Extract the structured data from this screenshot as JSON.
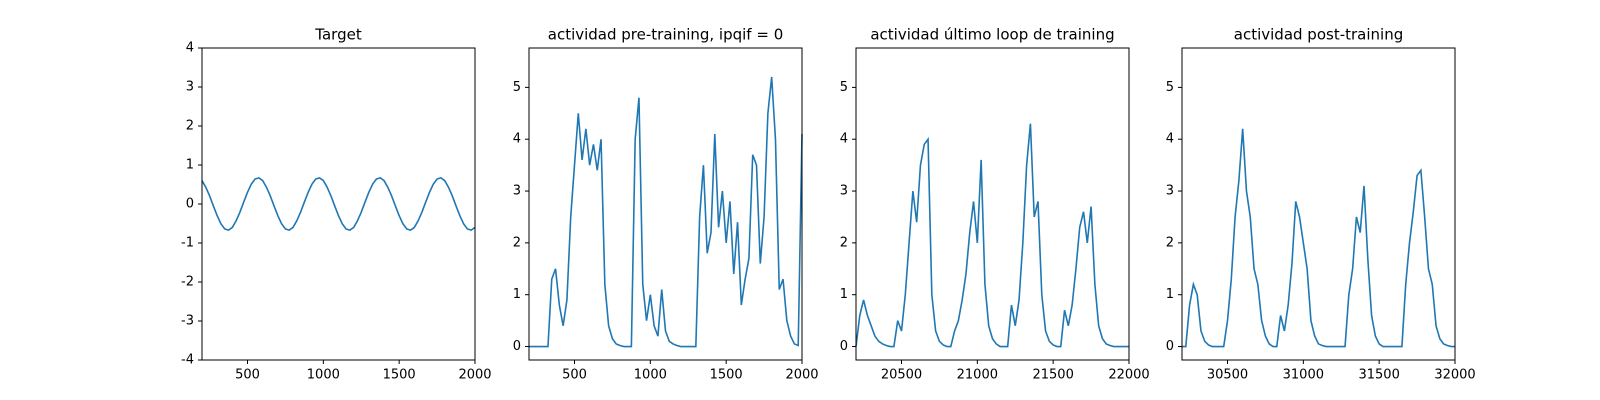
{
  "chart_data": [
    {
      "type": "line",
      "title": "Target",
      "x": [
        200,
        225,
        250,
        275,
        300,
        325,
        350,
        375,
        400,
        425,
        450,
        475,
        500,
        525,
        550,
        575,
        600,
        625,
        650,
        675,
        700,
        725,
        750,
        775,
        800,
        825,
        850,
        875,
        900,
        925,
        950,
        975,
        1000,
        1025,
        1050,
        1075,
        1100,
        1125,
        1150,
        1175,
        1200,
        1225,
        1250,
        1275,
        1300,
        1325,
        1350,
        1375,
        1400,
        1425,
        1450,
        1475,
        1500,
        1525,
        1550,
        1575,
        1600,
        1625,
        1650,
        1675,
        1700,
        1725,
        1750,
        1775,
        1800,
        1825,
        1850,
        1875,
        1900,
        1925,
        1950,
        1975,
        2000
      ],
      "series": [
        {
          "color": "#1f77b4",
          "values": [
            0.6,
            0.43,
            0.21,
            -0.05,
            -0.3,
            -0.51,
            -0.64,
            -0.67,
            -0.6,
            -0.43,
            -0.21,
            0.05,
            0.3,
            0.51,
            0.64,
            0.67,
            0.6,
            0.43,
            0.21,
            -0.05,
            -0.3,
            -0.51,
            -0.64,
            -0.67,
            -0.6,
            -0.43,
            -0.21,
            0.05,
            0.3,
            0.51,
            0.64,
            0.67,
            0.6,
            0.43,
            0.21,
            -0.05,
            -0.3,
            -0.51,
            -0.64,
            -0.67,
            -0.6,
            -0.43,
            -0.21,
            0.05,
            0.3,
            0.51,
            0.64,
            0.67,
            0.6,
            0.43,
            0.21,
            -0.05,
            -0.3,
            -0.51,
            -0.64,
            -0.67,
            -0.6,
            -0.43,
            -0.21,
            0.05,
            0.3,
            0.51,
            0.64,
            0.67,
            0.6,
            0.43,
            0.21,
            -0.05,
            -0.3,
            -0.51,
            -0.64,
            -0.67,
            -0.6
          ]
        }
      ],
      "xlim": [
        200,
        2000
      ],
      "xticks": [
        500,
        1000,
        1500,
        2000
      ],
      "ylim": [
        -4,
        4
      ],
      "yticks": [
        -4,
        -3,
        -2,
        -1,
        0,
        1,
        2,
        3,
        4
      ]
    },
    {
      "type": "line",
      "title": "actividad pre-training, ipqif = 0",
      "x": [
        200,
        225,
        250,
        275,
        300,
        325,
        350,
        375,
        400,
        425,
        450,
        475,
        500,
        525,
        550,
        575,
        600,
        625,
        650,
        675,
        700,
        725,
        750,
        775,
        800,
        825,
        850,
        875,
        900,
        925,
        950,
        975,
        1000,
        1025,
        1050,
        1075,
        1100,
        1125,
        1150,
        1175,
        1200,
        1225,
        1250,
        1275,
        1300,
        1325,
        1350,
        1375,
        1400,
        1425,
        1450,
        1475,
        1500,
        1525,
        1550,
        1575,
        1600,
        1625,
        1650,
        1675,
        1700,
        1725,
        1750,
        1775,
        1800,
        1825,
        1850,
        1875,
        1900,
        1925,
        1950,
        1975,
        2000
      ],
      "series": [
        {
          "color": "#1f77b4",
          "values": [
            0,
            0,
            0,
            0,
            0,
            0,
            1.3,
            1.5,
            0.8,
            0.4,
            0.9,
            2.5,
            3.5,
            4.5,
            3.6,
            4.2,
            3.5,
            3.9,
            3.4,
            4.0,
            1.2,
            0.4,
            0.15,
            0.05,
            0.02,
            0,
            0,
            0,
            4.0,
            4.8,
            1.2,
            0.5,
            1.0,
            0.4,
            0.2,
            1.1,
            0.3,
            0.1,
            0.05,
            0.02,
            0,
            0,
            0,
            0,
            0,
            2.5,
            3.5,
            1.8,
            2.2,
            4.1,
            2.3,
            3.0,
            2.0,
            2.8,
            1.4,
            2.4,
            0.8,
            1.3,
            1.7,
            3.7,
            3.5,
            1.6,
            2.5,
            4.5,
            5.2,
            4.0,
            1.1,
            1.3,
            0.5,
            0.2,
            0.05,
            0.02,
            4.1
          ]
        }
      ],
      "xlim": [
        200,
        2000
      ],
      "xticks": [
        500,
        1000,
        1500,
        2000
      ],
      "ylim": [
        -0.26,
        5.76
      ],
      "yticks": [
        0,
        1,
        2,
        3,
        4,
        5
      ]
    },
    {
      "type": "line",
      "title": "actividad último loop de training",
      "x": [
        20200,
        20225,
        20250,
        20275,
        20300,
        20325,
        20350,
        20375,
        20400,
        20425,
        20450,
        20475,
        20500,
        20525,
        20550,
        20575,
        20600,
        20625,
        20650,
        20675,
        20700,
        20725,
        20750,
        20775,
        20800,
        20825,
        20850,
        20875,
        20900,
        20925,
        20950,
        20975,
        21000,
        21025,
        21050,
        21075,
        21100,
        21125,
        21150,
        21175,
        21200,
        21225,
        21250,
        21275,
        21300,
        21325,
        21350,
        21375,
        21400,
        21425,
        21450,
        21475,
        21500,
        21525,
        21550,
        21575,
        21600,
        21625,
        21650,
        21675,
        21700,
        21725,
        21750,
        21775,
        21800,
        21825,
        21850,
        21875,
        21900,
        21925,
        21950,
        21975,
        22000
      ],
      "series": [
        {
          "color": "#1f77b4",
          "values": [
            0,
            0.6,
            0.9,
            0.6,
            0.4,
            0.2,
            0.1,
            0.05,
            0.02,
            0,
            0,
            0.5,
            0.3,
            1.0,
            2.0,
            3.0,
            2.4,
            3.5,
            3.9,
            4.0,
            1.0,
            0.3,
            0.1,
            0.03,
            0,
            0,
            0.3,
            0.5,
            0.9,
            1.4,
            2.2,
            2.8,
            2.0,
            3.6,
            1.2,
            0.4,
            0.15,
            0.05,
            0,
            0,
            0,
            0.8,
            0.4,
            0.9,
            2.0,
            3.5,
            4.3,
            2.5,
            2.8,
            1.0,
            0.3,
            0.1,
            0.03,
            0,
            0,
            0.7,
            0.4,
            0.8,
            1.5,
            2.3,
            2.6,
            2.0,
            2.7,
            1.2,
            0.4,
            0.15,
            0.05,
            0.02,
            0,
            0,
            0,
            0,
            0
          ]
        }
      ],
      "xlim": [
        20200,
        22000
      ],
      "xticks": [
        20500,
        21000,
        21500,
        22000
      ],
      "ylim": [
        -0.26,
        5.76
      ],
      "yticks": [
        0,
        1,
        2,
        3,
        4,
        5
      ]
    },
    {
      "type": "line",
      "title": "actividad post-training",
      "x": [
        30200,
        30225,
        30250,
        30275,
        30300,
        30325,
        30350,
        30375,
        30400,
        30425,
        30450,
        30475,
        30500,
        30525,
        30550,
        30575,
        30600,
        30625,
        30650,
        30675,
        30700,
        30725,
        30750,
        30775,
        30800,
        30825,
        30850,
        30875,
        30900,
        30925,
        30950,
        30975,
        31000,
        31025,
        31050,
        31075,
        31100,
        31125,
        31150,
        31175,
        31200,
        31225,
        31250,
        31275,
        31300,
        31325,
        31350,
        31375,
        31400,
        31425,
        31450,
        31475,
        31500,
        31525,
        31550,
        31575,
        31600,
        31625,
        31650,
        31675,
        31700,
        31725,
        31750,
        31775,
        31800,
        31825,
        31850,
        31875,
        31900,
        31925,
        31950,
        31975,
        32000
      ],
      "series": [
        {
          "color": "#1f77b4",
          "values": [
            0,
            0,
            0.8,
            1.2,
            1.0,
            0.3,
            0.1,
            0.03,
            0,
            0,
            0,
            0,
            0.5,
            1.3,
            2.5,
            3.2,
            4.2,
            3.0,
            2.5,
            1.5,
            1.2,
            0.5,
            0.2,
            0.05,
            0,
            0,
            0.6,
            0.3,
            0.8,
            1.6,
            2.8,
            2.5,
            2.0,
            1.5,
            0.5,
            0.2,
            0.05,
            0.02,
            0,
            0,
            0,
            0,
            0,
            0,
            1.0,
            1.5,
            2.5,
            2.2,
            3.1,
            1.7,
            0.6,
            0.2,
            0.05,
            0,
            0,
            0,
            0,
            0,
            0,
            1.2,
            2.0,
            2.6,
            3.3,
            3.4,
            2.5,
            1.5,
            1.2,
            0.4,
            0.15,
            0.05,
            0.02,
            0,
            0
          ]
        }
      ],
      "xlim": [
        30200,
        32000
      ],
      "xticks": [
        30500,
        31000,
        31500,
        32000
      ],
      "ylim": [
        -0.26,
        5.76
      ],
      "yticks": [
        0,
        1,
        2,
        3,
        4,
        5
      ]
    }
  ]
}
